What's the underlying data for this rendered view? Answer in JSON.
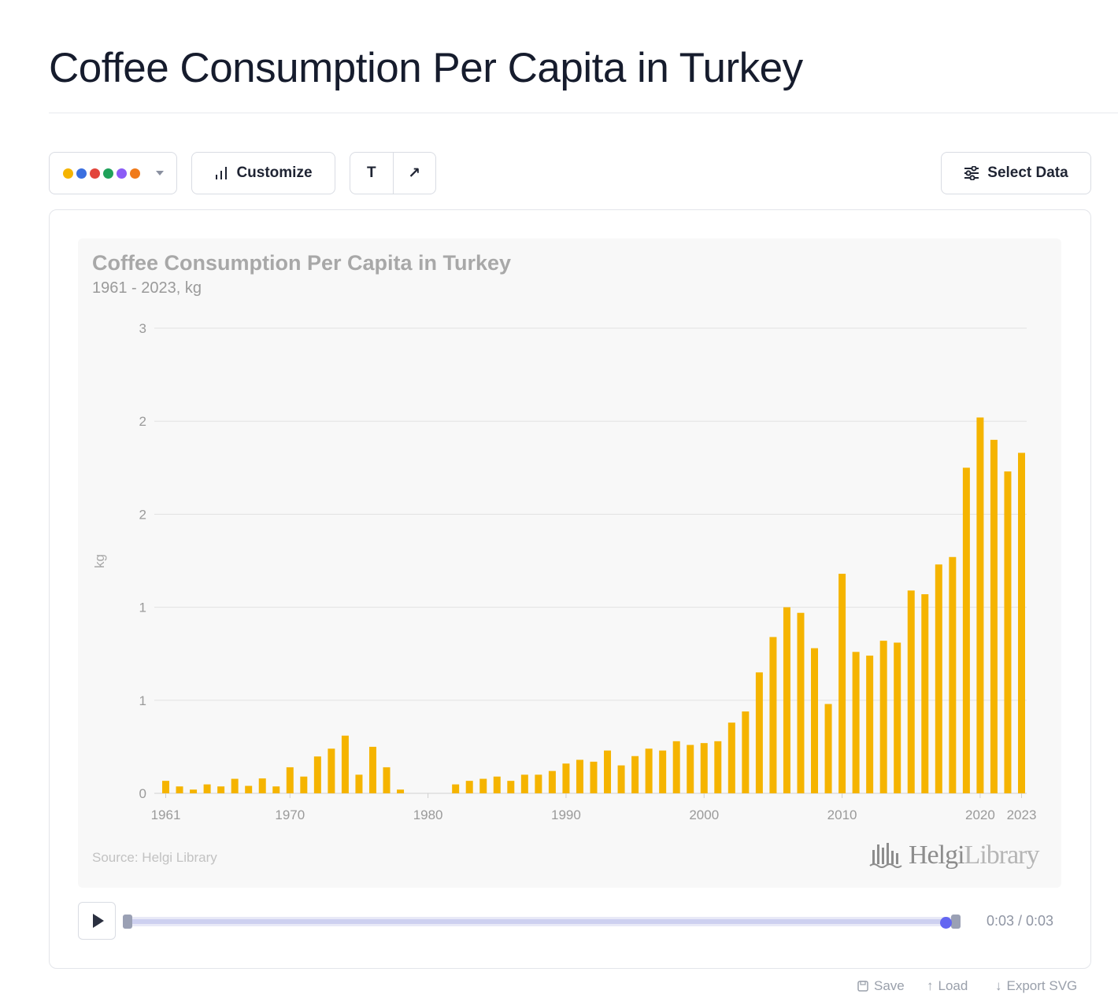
{
  "page": {
    "title": "Coffee Consumption Per Capita in Turkey"
  },
  "toolbar": {
    "palette_colors": [
      "#f5b400",
      "#3b6fe0",
      "#e2453c",
      "#1fa25a",
      "#8b5cf6",
      "#f07a1a"
    ],
    "customize_label": "Customize",
    "text_tool_label": "T",
    "arrow_tool_label": "↗",
    "select_data_label": "Select Data"
  },
  "chart_data": {
    "type": "bar",
    "title": "Coffee Consumption Per Capita in Turkey",
    "subtitle": "1961 - 2023, kg",
    "ylabel": "kg",
    "xlabel": "",
    "ylim": [
      0,
      2.5
    ],
    "y_ticks": [
      0,
      0.5,
      1,
      1.5,
      2,
      2.5
    ],
    "y_tick_labels": [
      "0",
      "1",
      "1",
      "2",
      "2",
      "3"
    ],
    "x_tick_labels": [
      "1961",
      "1970",
      "1980",
      "1990",
      "2000",
      "2010",
      "2020",
      "2023"
    ],
    "bar_color": "#f5b400",
    "grid": true,
    "categories": [
      1961,
      1962,
      1963,
      1964,
      1965,
      1966,
      1967,
      1968,
      1969,
      1970,
      1971,
      1972,
      1973,
      1974,
      1975,
      1976,
      1977,
      1978,
      1979,
      1980,
      1981,
      1982,
      1983,
      1984,
      1985,
      1986,
      1987,
      1988,
      1989,
      1990,
      1991,
      1992,
      1993,
      1994,
      1995,
      1996,
      1997,
      1998,
      1999,
      2000,
      2001,
      2002,
      2003,
      2004,
      2005,
      2006,
      2007,
      2008,
      2009,
      2010,
      2011,
      2012,
      2013,
      2014,
      2015,
      2016,
      2017,
      2018,
      2019,
      2020,
      2021,
      2022,
      2023
    ],
    "values": [
      0.067,
      0.037,
      0.02,
      0.048,
      0.037,
      0.078,
      0.04,
      0.08,
      0.037,
      0.14,
      0.09,
      0.198,
      0.24,
      0.31,
      0.1,
      0.25,
      0.14,
      0.02,
      0,
      0,
      0,
      0.048,
      0.067,
      0.078,
      0.09,
      0.067,
      0.1,
      0.1,
      0.12,
      0.16,
      0.18,
      0.17,
      0.23,
      0.15,
      0.2,
      0.24,
      0.23,
      0.28,
      0.26,
      0.27,
      0.28,
      0.38,
      0.44,
      0.65,
      0.84,
      1.0,
      0.97,
      0.78,
      0.48,
      1.18,
      0.76,
      0.74,
      0.82,
      0.81,
      1.09,
      1.07,
      1.23,
      1.27,
      1.75,
      2.02,
      1.9,
      1.73,
      1.83
    ]
  },
  "source_text": "Source: Helgi Library",
  "logo": {
    "part1": "Helgi",
    "part2": "Library"
  },
  "player": {
    "time": "0:03 / 0:03",
    "progress": 1.0
  },
  "footer": {
    "save_label": "Save",
    "load_label": "Load",
    "export_label": "Export SVG"
  }
}
